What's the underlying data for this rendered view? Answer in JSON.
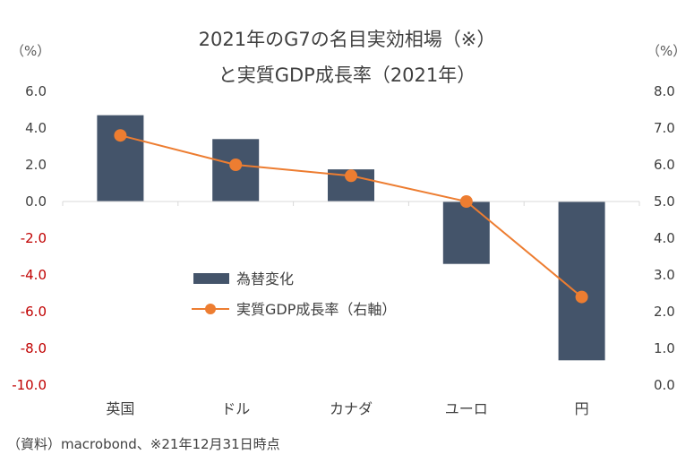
{
  "chart_data": {
    "type": "bar+line",
    "title_line1": "2021年のG7の名目実効相場（※）",
    "title_line2": "と実質GDP成長率（2021年）",
    "categories": [
      "英国",
      "ドル",
      "カナダ",
      "ユーロ",
      "円"
    ],
    "series": [
      {
        "name": "為替変化",
        "type": "bar",
        "axis": "left",
        "values": [
          4.7,
          3.4,
          1.75,
          -3.4,
          -8.65
        ],
        "color": "#44546A"
      },
      {
        "name": "実質GDP成長率（右軸）",
        "type": "line",
        "axis": "right",
        "values": [
          6.8,
          6.0,
          5.7,
          5.0,
          2.4
        ],
        "color": "#ED7D31"
      }
    ],
    "left_axis": {
      "unit": "（%）",
      "min": -10.0,
      "max": 6.0,
      "step": 2.0,
      "ticks": [
        "6.0",
        "4.0",
        "2.0",
        "0.0",
        "-2.0",
        "-4.0",
        "-6.0",
        "-8.0",
        "-10.0"
      ],
      "negative_color": "#C00000"
    },
    "right_axis": {
      "unit": "（%）",
      "min": 0.0,
      "max": 8.0,
      "step": 1.0,
      "ticks": [
        "8.0",
        "7.0",
        "6.0",
        "5.0",
        "4.0",
        "3.0",
        "2.0",
        "1.0",
        "0.0"
      ]
    },
    "grid": false,
    "legend_placement": "center"
  },
  "source": "（資料）macrobond、※21年12月31日時点"
}
